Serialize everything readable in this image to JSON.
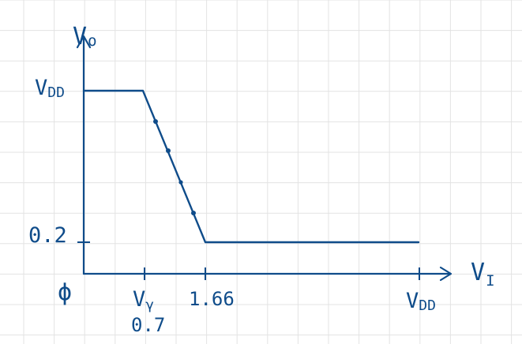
{
  "axes": {
    "y_label_main": "V",
    "y_label_sub": "o",
    "x_label_main": "V",
    "x_label_sub": "I"
  },
  "y_ticks": [
    {
      "main": "V",
      "sub": "DD"
    },
    {
      "main": "0.2",
      "sub": ""
    },
    {
      "main": "ϕ",
      "sub": ""
    }
  ],
  "x_ticks": [
    {
      "main": "V",
      "sub": "γ",
      "second_line": "0.7"
    },
    {
      "main": "1.66",
      "sub": "",
      "second_line": ""
    },
    {
      "main": "V",
      "sub": "DD",
      "second_line": ""
    }
  ],
  "curve": {
    "description_points": [
      {
        "x": "0",
        "y": "VDD"
      },
      {
        "x": "0.7",
        "y": "VDD"
      },
      {
        "x": "1.66",
        "y": "0.2"
      },
      {
        "x": "VDD",
        "y": "0.2"
      }
    ],
    "marked_dot_count": 4
  },
  "colors": {
    "ink": "#0f4c8a",
    "grid": "#e3e3e3",
    "background": "#ffffff"
  }
}
